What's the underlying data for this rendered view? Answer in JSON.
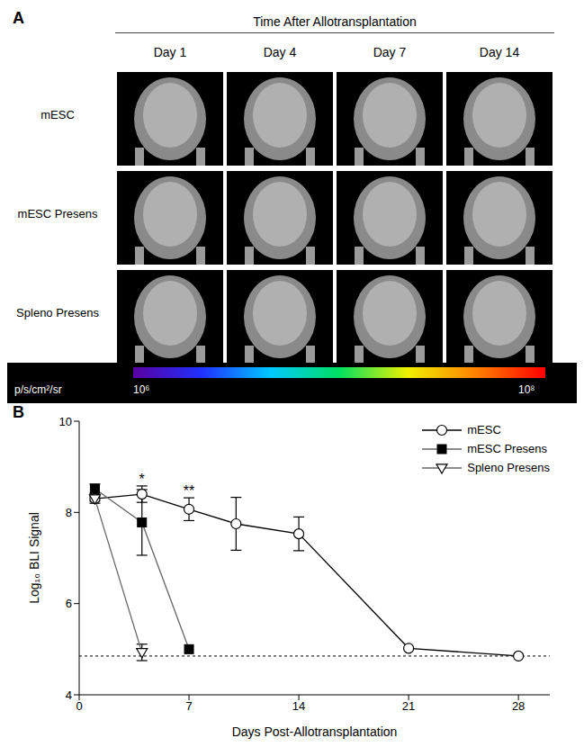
{
  "panel_a": {
    "panel_label": "A",
    "header": "Time After Allotransplantation",
    "columns": [
      "Day 1",
      "Day 4",
      "Day 7",
      "Day 14"
    ],
    "rows": [
      "mESC",
      "mESC Presens",
      "Spleno Presens"
    ],
    "colorbar": {
      "unit": "p/s/cm²/sr",
      "min_label": "10⁶",
      "max_label": "10⁸"
    }
  },
  "chart_data": {
    "type": "line",
    "panel_label": "B",
    "x_label": "Days Post-Allotransplantation",
    "y_label": "Log₁₀ BLI Signal",
    "xlim": [
      0,
      30
    ],
    "xticks": [
      0,
      7,
      14,
      21,
      28
    ],
    "ylim": [
      4,
      10
    ],
    "yticks": [
      4,
      6,
      8,
      10
    ],
    "grid": false,
    "legend": "upper right",
    "reference_line": 4.85,
    "series": [
      {
        "name": "mESC",
        "color": "#000000",
        "marker": "circle_open",
        "x": [
          1,
          4,
          7,
          10,
          14,
          21,
          28
        ],
        "values": [
          8.3,
          8.4,
          8.07,
          7.75,
          7.53,
          5.02,
          4.85
        ],
        "errors": [
          0.1,
          0.18,
          0.25,
          0.58,
          0.37,
          0,
          0
        ]
      },
      {
        "name": "mESC Presens",
        "color": "#666666",
        "marker": "square",
        "x": [
          1,
          4,
          7
        ],
        "values": [
          8.52,
          7.78,
          5.0
        ],
        "errors": [
          0.1,
          0.72,
          0
        ]
      },
      {
        "name": "Spleno Presens",
        "color": "#666666",
        "marker": "triangle_down_open",
        "x": [
          1,
          4
        ],
        "values": [
          8.3,
          4.93
        ],
        "errors": [
          0.05,
          0.18
        ]
      }
    ],
    "annotations": [
      {
        "text": "*",
        "x": 4
      },
      {
        "text": "**",
        "x": 7
      }
    ]
  }
}
